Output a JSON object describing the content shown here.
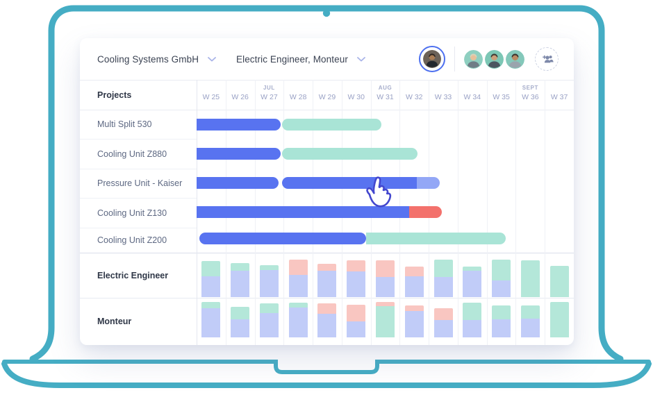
{
  "header": {
    "company": "Cooling Systems GmbH",
    "team_filter": "Electric Engineer,  Monteur"
  },
  "gantt": {
    "projects_header": "Projects",
    "weeks": [
      {
        "label": "W 25",
        "month": ""
      },
      {
        "label": "W 26",
        "month": ""
      },
      {
        "label": "W 27",
        "month": "JUL"
      },
      {
        "label": "W 28",
        "month": ""
      },
      {
        "label": "W 29",
        "month": ""
      },
      {
        "label": "W 30",
        "month": ""
      },
      {
        "label": "W 31",
        "month": "AUG"
      },
      {
        "label": "W 32",
        "month": ""
      },
      {
        "label": "W 33",
        "month": ""
      },
      {
        "label": "W 34",
        "month": ""
      },
      {
        "label": "W 35",
        "month": ""
      },
      {
        "label": "W 36",
        "month": "SEPT"
      },
      {
        "label": "W 37",
        "month": ""
      }
    ],
    "projects": [
      {
        "name": "Multi Split 530",
        "bars": [
          {
            "c": "blue",
            "s": 0,
            "e": 2.9,
            "rl": false,
            "rr": true
          },
          {
            "c": "teal",
            "s": 2.95,
            "e": 6.37,
            "rl": true,
            "rr": true
          }
        ]
      },
      {
        "name": "Cooling Unit Z880",
        "bars": [
          {
            "c": "blue",
            "s": 0,
            "e": 2.9,
            "rl": false,
            "rr": true
          },
          {
            "c": "teal",
            "s": 2.95,
            "e": 7.62,
            "rl": true,
            "rr": true
          }
        ]
      },
      {
        "name": "Pressure Unit - Kaiser",
        "bars": [
          {
            "c": "blue",
            "s": 0,
            "e": 2.83,
            "rl": false,
            "rr": true
          },
          {
            "c": "blue",
            "s": 2.94,
            "e": 7.59,
            "rl": true,
            "rr": false
          },
          {
            "c": "lightblue",
            "s": 7.59,
            "e": 8.38,
            "rl": false,
            "rr": true
          }
        ]
      },
      {
        "name": "Cooling Unit Z130",
        "bars": [
          {
            "c": "blue",
            "s": 0,
            "e": 7.33,
            "rl": false,
            "rr": false
          },
          {
            "c": "red",
            "s": 7.33,
            "e": 8.45,
            "rl": false,
            "rr": true
          }
        ]
      },
      {
        "name": "Cooling Unit Z200",
        "bars": [
          {
            "c": "blue",
            "s": 0.1,
            "e": 5.84,
            "rl": true,
            "rr": true
          },
          {
            "c": "teal",
            "s": 5.84,
            "e": 10.66,
            "rl": false,
            "rr": true
          }
        ]
      }
    ],
    "resources": [
      {
        "name": "Electric Engineer",
        "bars": [
          [
            [
              "teal",
              22
            ],
            [
              "blue",
              30
            ]
          ],
          [
            [
              "teal",
              11
            ],
            [
              "blue",
              38
            ]
          ],
          [
            [
              "teal",
              7
            ],
            [
              "blue",
              39
            ]
          ],
          [
            [
              "pink",
              22
            ],
            [
              "blue",
              32
            ]
          ],
          [
            [
              "pink",
              10
            ],
            [
              "blue",
              38
            ]
          ],
          [
            [
              "pink",
              16
            ],
            [
              "blue",
              37
            ]
          ],
          [
            [
              "pink",
              24
            ],
            [
              "blue",
              29
            ]
          ],
          [
            [
              "pink",
              14
            ],
            [
              "blue",
              30
            ]
          ],
          [
            [
              "teal",
              25
            ],
            [
              "blue",
              29
            ]
          ],
          [
            [
              "teal",
              6
            ],
            [
              "blue",
              38
            ]
          ],
          [
            [
              "teal",
              30
            ],
            [
              "blue",
              24
            ]
          ],
          [
            [
              "teal",
              53
            ]
          ],
          [
            [
              "teal",
              45
            ]
          ]
        ]
      },
      {
        "name": "Monteur",
        "bars": [
          [
            [
              "teal",
              9
            ],
            [
              "blue",
              42
            ]
          ],
          [
            [
              "teal",
              18
            ],
            [
              "blue",
              26
            ]
          ],
          [
            [
              "teal",
              14
            ],
            [
              "blue",
              35
            ]
          ],
          [
            [
              "teal",
              7
            ],
            [
              "blue",
              43
            ]
          ],
          [
            [
              "pink",
              15
            ],
            [
              "blue",
              34
            ]
          ],
          [
            [
              "pink",
              24
            ],
            [
              "blue",
              23
            ]
          ],
          [
            [
              "pink",
              6
            ],
            [
              "teal",
              45
            ]
          ],
          [
            [
              "pink",
              8
            ],
            [
              "blue",
              38
            ]
          ],
          [
            [
              "pink",
              17
            ],
            [
              "blue",
              25
            ]
          ],
          [
            [
              "teal",
              25
            ],
            [
              "blue",
              25
            ]
          ],
          [
            [
              "teal",
              20
            ],
            [
              "blue",
              26
            ]
          ],
          [
            [
              "teal",
              19
            ],
            [
              "blue",
              27
            ]
          ],
          [
            [
              "teal",
              51
            ]
          ]
        ]
      }
    ]
  },
  "colors": {
    "frame": "#45ADC4",
    "bar_blue": "#5873F0",
    "bar_lightblue": "#93A7F6",
    "bar_teal": "#A9E4D6",
    "bar_red": "#F3716C",
    "cap_blue": "#C1CCF8",
    "cap_teal": "#B4E7D9",
    "cap_pink": "#F9C6C1",
    "avatar_ring": "#4C6FEF"
  },
  "avatars": [
    {
      "selected": true,
      "bg": "#6B6158",
      "skin": "#A97C55",
      "hair": "#2E2622",
      "shirt": "#23272E"
    },
    {
      "selected": false,
      "bg": "#8ECFC0",
      "skin": "#E6C09A",
      "hair": "#D9D2B8",
      "shirt": "#6F7D86"
    },
    {
      "selected": false,
      "bg": "#7CC7B5",
      "skin": "#CAA07B",
      "hair": "#3F3A34",
      "shirt": "#4B5560"
    },
    {
      "selected": false,
      "bg": "#84C8BA",
      "skin": "#B98A63",
      "hair": "#3A332D",
      "shirt": "#9AA4AD"
    }
  ]
}
